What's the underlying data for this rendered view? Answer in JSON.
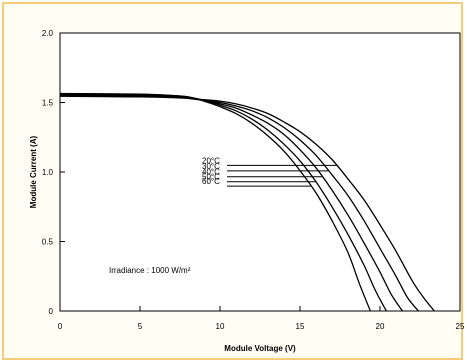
{
  "chart_data": {
    "type": "line",
    "xlabel": "Module Voltage (V)",
    "ylabel": "Module Current (A)",
    "xlim": [
      0,
      25
    ],
    "ylim": [
      0,
      2.0
    ],
    "x_ticks": [
      "0",
      "5",
      "10",
      "15",
      "20",
      "25"
    ],
    "y_ticks": [
      "0",
      "0.5",
      "1.0",
      "1.5",
      "2.0"
    ],
    "grid": false,
    "annotation": "Irradiance : 1000 W/m²",
    "series": [
      {
        "name": "20°C",
        "isc": 1.545,
        "x": [
          0,
          5,
          7,
          8,
          9,
          10,
          11,
          12,
          13,
          14,
          15,
          16,
          17,
          18,
          19,
          20,
          21,
          22,
          22.7,
          23.4
        ],
        "y": [
          1.545,
          1.54,
          1.535,
          1.53,
          1.52,
          1.51,
          1.49,
          1.46,
          1.42,
          1.36,
          1.29,
          1.2,
          1.09,
          0.95,
          0.8,
          0.62,
          0.43,
          0.22,
          0.1,
          0.0
        ]
      },
      {
        "name": "30°C",
        "isc": 1.55,
        "x": [
          0,
          5,
          7,
          8,
          9,
          10,
          11,
          12,
          13,
          14,
          15,
          16,
          17,
          18,
          19,
          20,
          21,
          21.7,
          22.4
        ],
        "y": [
          1.55,
          1.545,
          1.54,
          1.53,
          1.515,
          1.5,
          1.475,
          1.44,
          1.39,
          1.32,
          1.23,
          1.12,
          0.98,
          0.83,
          0.65,
          0.45,
          0.25,
          0.1,
          0.0
        ]
      },
      {
        "name": "40°C",
        "isc": 1.555,
        "x": [
          0,
          5,
          7,
          8,
          9,
          10,
          11,
          12,
          13,
          14,
          15,
          16,
          17,
          18,
          19,
          20,
          20.7,
          21.4
        ],
        "y": [
          1.555,
          1.55,
          1.545,
          1.535,
          1.515,
          1.49,
          1.46,
          1.41,
          1.35,
          1.27,
          1.16,
          1.03,
          0.87,
          0.69,
          0.49,
          0.28,
          0.12,
          0.0
        ]
      },
      {
        "name": "50°C",
        "isc": 1.56,
        "x": [
          0,
          5,
          7,
          8,
          9,
          10,
          11,
          12,
          13,
          14,
          15,
          16,
          17,
          18,
          19,
          19.7,
          20.4
        ],
        "y": [
          1.56,
          1.555,
          1.55,
          1.54,
          1.515,
          1.48,
          1.44,
          1.38,
          1.3,
          1.2,
          1.08,
          0.93,
          0.75,
          0.55,
          0.33,
          0.15,
          0.0
        ]
      },
      {
        "name": "60°C",
        "isc": 1.565,
        "x": [
          0,
          5,
          7,
          8,
          9,
          10,
          11,
          12,
          13,
          14,
          15,
          16,
          17,
          18,
          18.7,
          19.4
        ],
        "y": [
          1.565,
          1.56,
          1.55,
          1.54,
          1.51,
          1.47,
          1.42,
          1.35,
          1.26,
          1.15,
          1.01,
          0.85,
          0.65,
          0.42,
          0.2,
          0.0
        ]
      }
    ],
    "label_anchor_x": [
      17.3,
      16.8,
      16.4,
      16.0,
      15.7
    ]
  }
}
